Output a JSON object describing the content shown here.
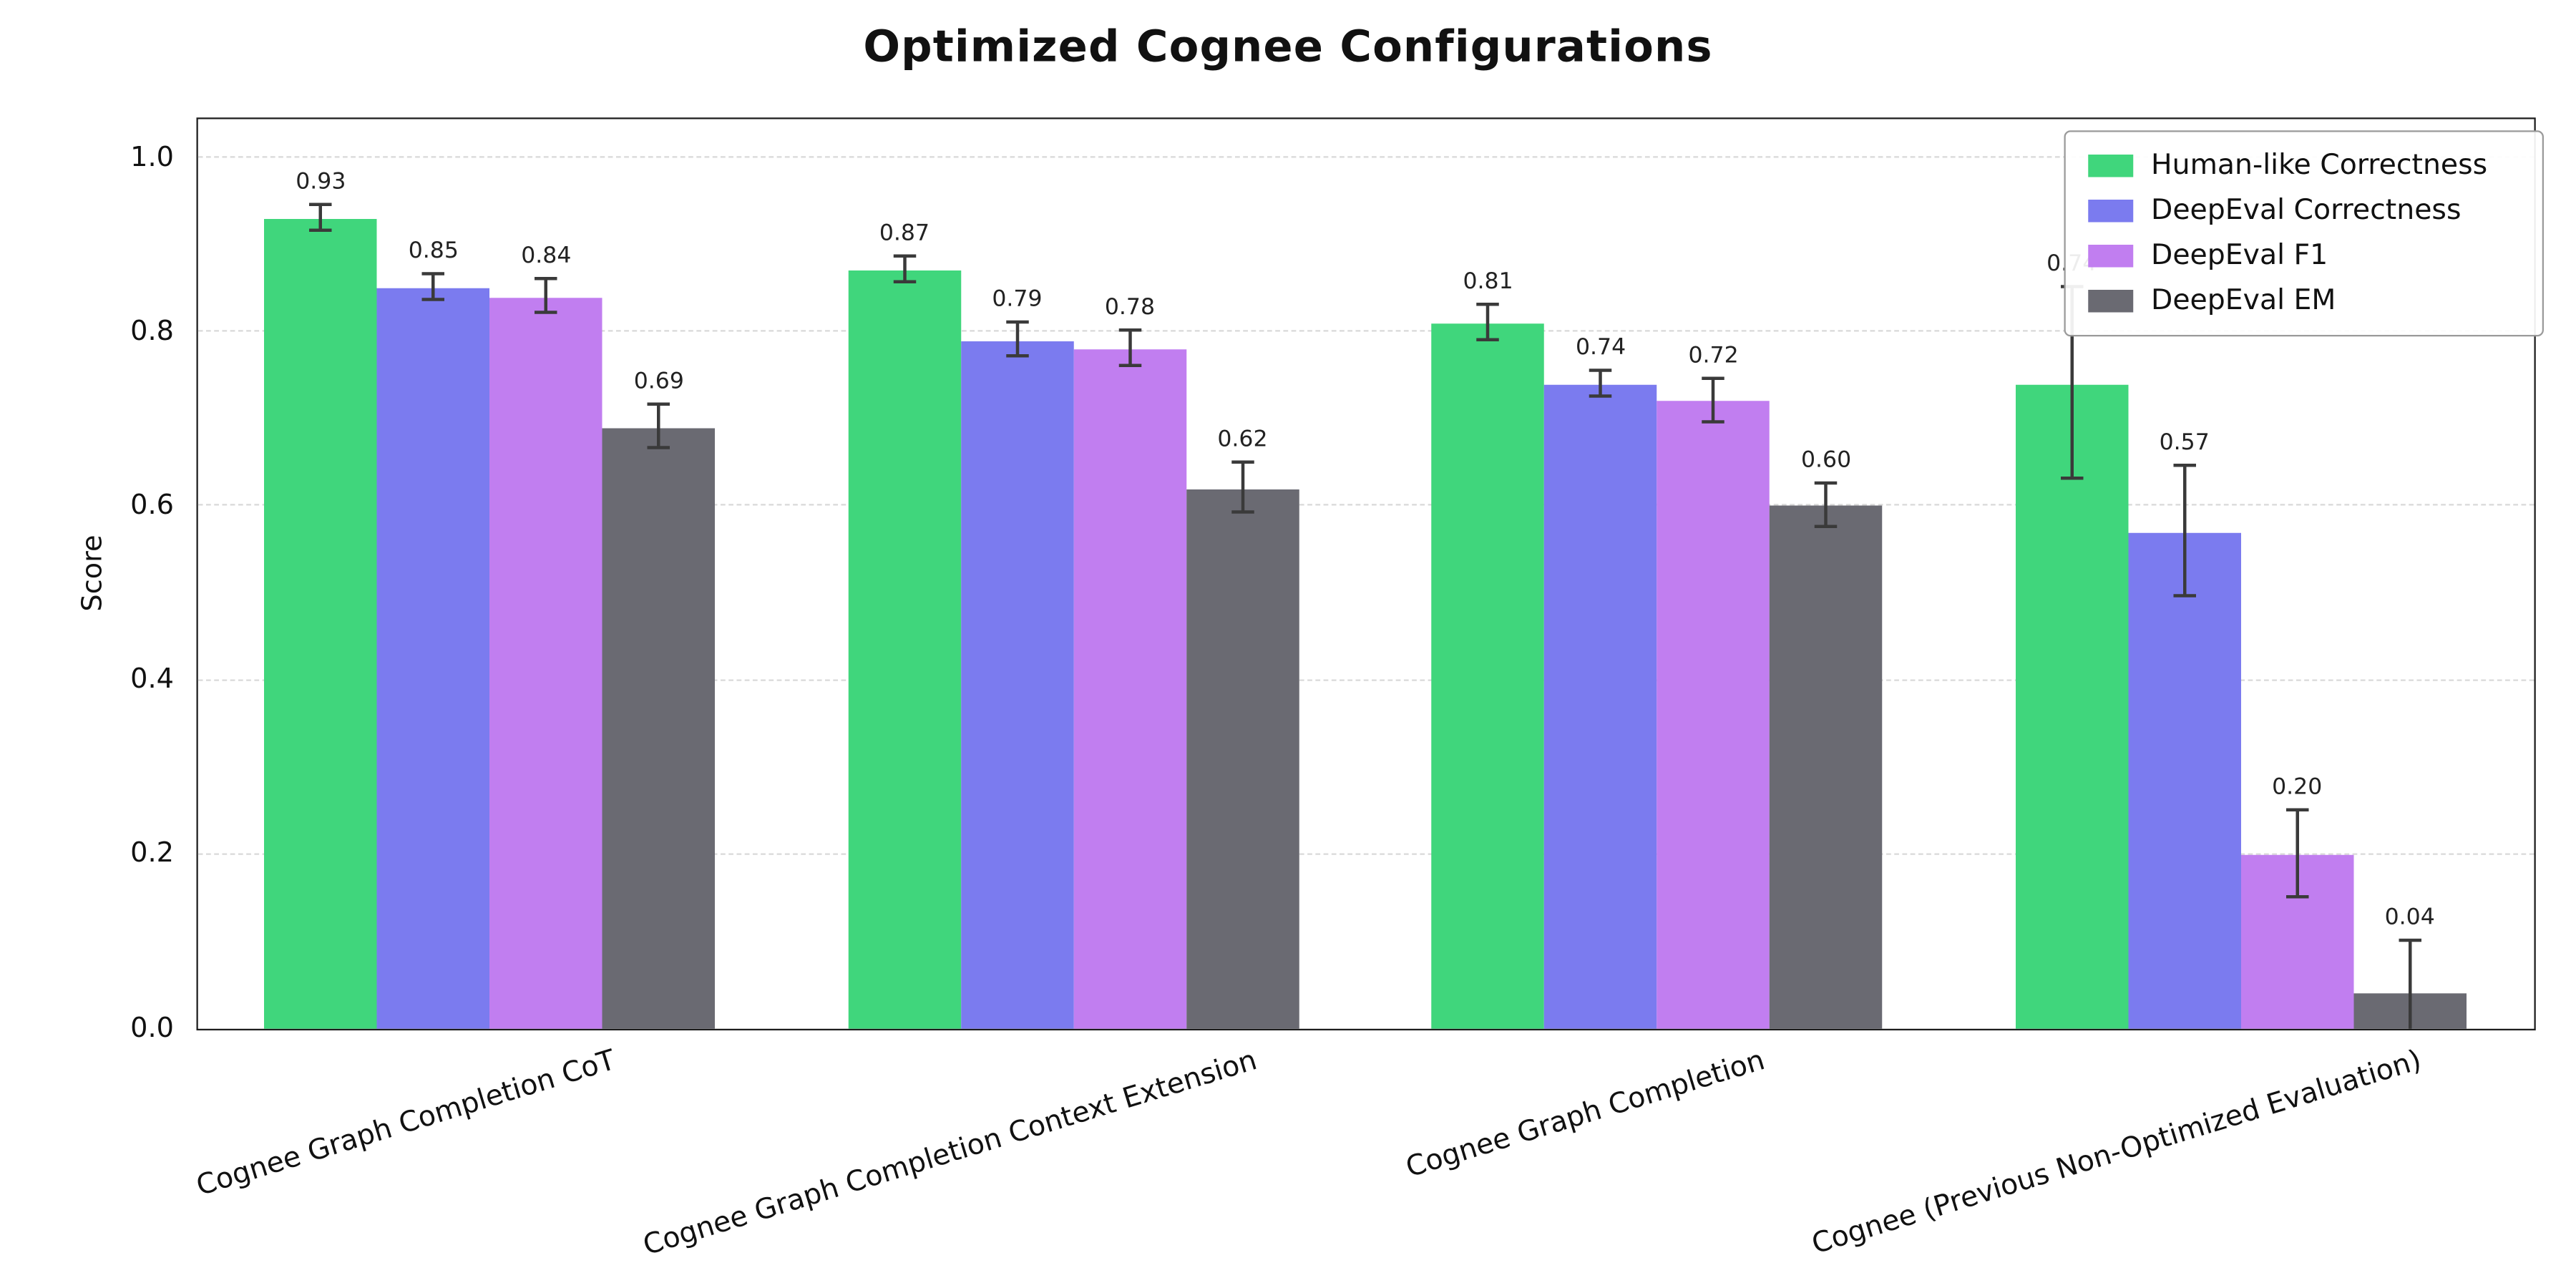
{
  "chart_data": {
    "type": "bar",
    "title": "Optimized Cognee Configurations",
    "xlabel": "",
    "ylabel": "Score",
    "ylim": [
      0,
      1.05
    ],
    "yticks": [
      0.0,
      0.2,
      0.4,
      0.6,
      0.8,
      1.0
    ],
    "grid": "horizontal-dashed",
    "legend_position": "upper-right",
    "error_bars": true,
    "bar_value_labels": true,
    "categories": [
      "Cognee Graph Completion CoT",
      "Cognee Graph Completion Context Extension",
      "Cognee Graph Completion",
      "Cognee (Previous Non-Optimized Evaluation)"
    ],
    "series": [
      {
        "name": "Human-like Correctness",
        "color": "#40d67c",
        "values": [
          0.93,
          0.87,
          0.81,
          0.74
        ],
        "errors": [
          0.015,
          0.015,
          0.02,
          0.11
        ]
      },
      {
        "name": "DeepEval Correctness",
        "color": "#7b7bef",
        "values": [
          0.85,
          0.79,
          0.74,
          0.57
        ],
        "errors": [
          0.015,
          0.02,
          0.015,
          0.075
        ]
      },
      {
        "name": "DeepEval F1",
        "color": "#c17ef0",
        "values": [
          0.84,
          0.78,
          0.72,
          0.2
        ],
        "errors": [
          0.02,
          0.02,
          0.025,
          0.05
        ]
      },
      {
        "name": "DeepEval EM",
        "color": "#6a6a72",
        "values": [
          0.69,
          0.62,
          0.6,
          0.04
        ],
        "errors": [
          0.025,
          0.028,
          0.025,
          0.06
        ]
      }
    ],
    "colors": {
      "grid": "#d9d9d9",
      "axis": "#1c1c1c",
      "error_bar": "#3a3a3a",
      "background": "#ffffff"
    }
  }
}
